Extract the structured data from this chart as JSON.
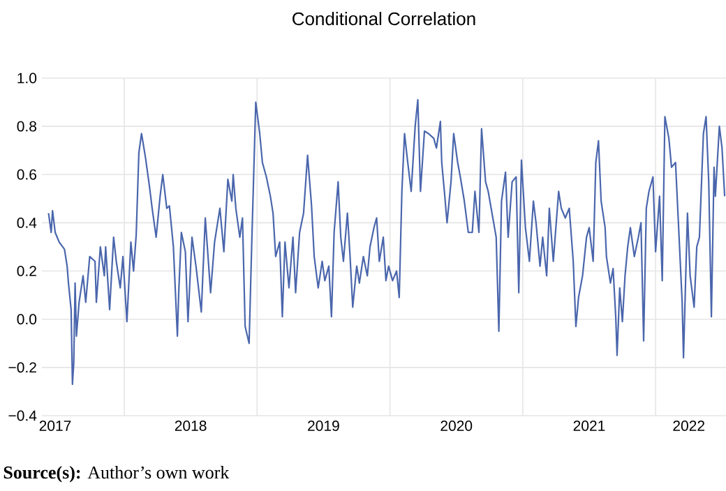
{
  "chart_data": {
    "type": "line",
    "title": "Conditional Correlation",
    "annotations": [
      "**Source(s):** Author’s own work"
    ],
    "xlim": [
      2017.38,
      2022.53
    ],
    "xticks": [
      {
        "value": 2017.48,
        "label": "2017"
      },
      {
        "value": 2018,
        "label": null
      },
      {
        "value": 2018.5,
        "label": "2018"
      },
      {
        "value": 2019,
        "label": null
      },
      {
        "value": 2019.5,
        "label": "2019"
      },
      {
        "value": 2020,
        "label": null
      },
      {
        "value": 2020.5,
        "label": "2020"
      },
      {
        "value": 2021,
        "label": null
      },
      {
        "value": 2021.5,
        "label": "2021"
      },
      {
        "value": 2022,
        "label": null
      },
      {
        "value": 2022.25,
        "label": "2022"
      }
    ],
    "ylim": [
      -0.4,
      1.0
    ],
    "yticks": [
      {
        "value": -0.4,
        "label": "−0.4"
      },
      {
        "value": -0.2,
        "label": "−0.2"
      },
      {
        "value": 0,
        "label": "0.0"
      },
      {
        "value": 0.2,
        "label": "0.2"
      },
      {
        "value": 0.4,
        "label": "0.4"
      },
      {
        "value": 0.6,
        "label": "0.6"
      },
      {
        "value": 0.8,
        "label": "0.8"
      },
      {
        "value": 1.0,
        "label": "1.0"
      }
    ],
    "grid": true,
    "marker": "none",
    "line_style": "solid",
    "series": [
      {
        "color": "#4a66ac",
        "x": [
          2017.43,
          2017.45,
          2017.46,
          2017.48,
          2017.51,
          2017.55,
          2017.57,
          2017.58,
          2017.6,
          2017.61,
          2017.62,
          2017.63,
          2017.64,
          2017.66,
          2017.69,
          2017.71,
          2017.74,
          2017.78,
          2017.79,
          2017.82,
          2017.85,
          2017.86,
          2017.89,
          2017.92,
          2017.94,
          2017.97,
          2017.99,
          2018.02,
          2018.05,
          2018.07,
          2018.09,
          2018.11,
          2018.13,
          2018.16,
          2018.19,
          2018.21,
          2018.24,
          2018.27,
          2018.29,
          2018.32,
          2018.34,
          2018.37,
          2018.4,
          2018.41,
          2018.43,
          2018.46,
          2018.48,
          2018.51,
          2018.54,
          2018.58,
          2018.61,
          2018.65,
          2018.68,
          2018.72,
          2018.75,
          2018.78,
          2018.81,
          2018.82,
          2018.84,
          2018.87,
          2018.89,
          2018.91,
          2018.94,
          2018.96,
          2018.99,
          2019.02,
          2019.04,
          2019.07,
          2019.1,
          2019.12,
          2019.14,
          2019.17,
          2019.19,
          2019.21,
          2019.24,
          2019.27,
          2019.29,
          2019.32,
          2019.35,
          2019.38,
          2019.41,
          2019.43,
          2019.46,
          2019.49,
          2019.51,
          2019.54,
          2019.56,
          2019.58,
          2019.61,
          2019.63,
          2019.65,
          2019.68,
          2019.7,
          2019.72,
          2019.75,
          2019.77,
          2019.8,
          2019.83,
          2019.85,
          2019.88,
          2019.9,
          2019.92,
          2019.95,
          2019.97,
          2019.99,
          2020.02,
          2020.05,
          2020.07,
          2020.09,
          2020.11,
          2020.13,
          2020.16,
          2020.19,
          2020.21,
          2020.23,
          2020.26,
          2020.29,
          2020.33,
          2020.35,
          2020.38,
          2020.39,
          2020.41,
          2020.43,
          2020.46,
          2020.48,
          2020.51,
          2020.53,
          2020.56,
          2020.59,
          2020.62,
          2020.64,
          2020.67,
          2020.69,
          2020.72,
          2020.74,
          2020.8,
          2020.82,
          2020.84,
          2020.87,
          2020.89,
          2020.92,
          2020.95,
          2020.97,
          2020.99,
          2021.02,
          2021.05,
          2021.08,
          2021.1,
          2021.13,
          2021.15,
          2021.18,
          2021.2,
          2021.23,
          2021.27,
          2021.29,
          2021.32,
          2021.35,
          2021.38,
          2021.4,
          2021.42,
          2021.45,
          2021.48,
          2021.5,
          2021.53,
          2021.55,
          2021.57,
          2021.59,
          2021.62,
          2021.63,
          2021.66,
          2021.68,
          2021.7,
          2021.71,
          2021.73,
          2021.75,
          2021.77,
          2021.79,
          2021.81,
          2021.84,
          2021.87,
          2021.89,
          2021.91,
          2021.93,
          2021.95,
          2021.98,
          2022.0,
          2022.03,
          2022.05,
          2022.07,
          2022.1,
          2022.12,
          2022.15,
          2022.17,
          2022.2,
          2022.21,
          2022.24,
          2022.26,
          2022.29,
          2022.31,
          2022.33,
          2022.36,
          2022.38,
          2022.4,
          2022.42,
          2022.44,
          2022.45,
          2022.48,
          2022.5,
          2022.52
        ],
        "values": [
          0.44,
          0.36,
          0.45,
          0.36,
          0.32,
          0.29,
          0.22,
          0.15,
          0.04,
          -0.27,
          -0.18,
          0.15,
          -0.07,
          0.07,
          0.18,
          0.07,
          0.26,
          0.24,
          0.07,
          0.3,
          0.18,
          0.3,
          0.04,
          0.34,
          0.24,
          0.13,
          0.26,
          -0.01,
          0.32,
          0.2,
          0.35,
          0.69,
          0.77,
          0.67,
          0.55,
          0.46,
          0.34,
          0.51,
          0.6,
          0.46,
          0.47,
          0.3,
          -0.07,
          0.11,
          0.36,
          0.28,
          -0.01,
          0.34,
          0.22,
          0.03,
          0.42,
          0.11,
          0.32,
          0.46,
          0.28,
          0.58,
          0.49,
          0.6,
          0.46,
          0.34,
          0.42,
          -0.03,
          -0.1,
          0.32,
          0.9,
          0.77,
          0.65,
          0.59,
          0.51,
          0.44,
          0.26,
          0.32,
          0.01,
          0.32,
          0.13,
          0.34,
          0.11,
          0.36,
          0.44,
          0.68,
          0.47,
          0.26,
          0.13,
          0.24,
          0.16,
          0.22,
          0.01,
          0.36,
          0.57,
          0.34,
          0.24,
          0.44,
          0.26,
          0.05,
          0.22,
          0.15,
          0.26,
          0.18,
          0.3,
          0.38,
          0.42,
          0.24,
          0.34,
          0.16,
          0.22,
          0.16,
          0.2,
          0.09,
          0.53,
          0.77,
          0.67,
          0.53,
          0.8,
          0.91,
          0.53,
          0.78,
          0.77,
          0.75,
          0.71,
          0.82,
          0.65,
          0.53,
          0.4,
          0.57,
          0.77,
          0.65,
          0.59,
          0.49,
          0.36,
          0.36,
          0.53,
          0.36,
          0.79,
          0.57,
          0.53,
          0.34,
          -0.05,
          0.49,
          0.61,
          0.34,
          0.57,
          0.59,
          0.11,
          0.66,
          0.38,
          0.24,
          0.49,
          0.4,
          0.22,
          0.34,
          0.18,
          0.46,
          0.24,
          0.53,
          0.46,
          0.42,
          0.46,
          0.24,
          -0.03,
          0.09,
          0.18,
          0.34,
          0.38,
          0.24,
          0.65,
          0.74,
          0.49,
          0.38,
          0.26,
          0.15,
          0.21,
          0.01,
          -0.15,
          0.13,
          -0.01,
          0.18,
          0.3,
          0.38,
          0.26,
          0.34,
          0.4,
          -0.09,
          0.46,
          0.53,
          0.59,
          0.28,
          0.51,
          0.16,
          0.84,
          0.75,
          0.63,
          0.65,
          0.42,
          0.07,
          -0.16,
          0.44,
          0.18,
          0.05,
          0.3,
          0.34,
          0.77,
          0.84,
          0.57,
          0.01,
          0.63,
          0.51,
          0.8,
          0.71,
          0.51
        ]
      }
    ]
  }
}
